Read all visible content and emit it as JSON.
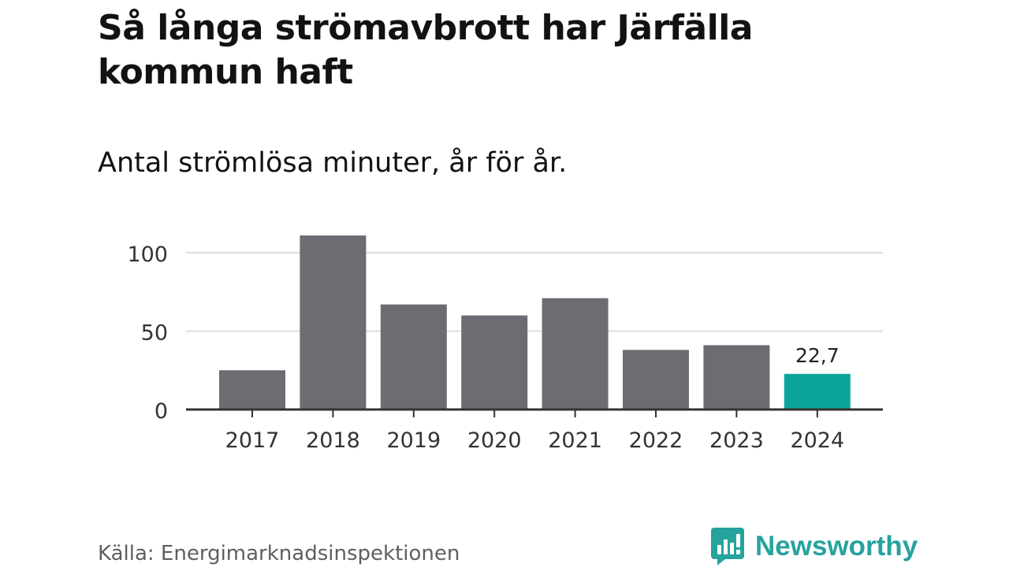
{
  "header": {
    "title": "Så långa strömavbrott har Järfälla kommun haft",
    "subtitle": "Antal strömlösa minuter, år för år."
  },
  "footer": {
    "source": "Källa: Energimarknadsinspektionen",
    "brand": "Newsworthy"
  },
  "colors": {
    "bar": "#6d6c72",
    "highlight": "#0aa59a",
    "brand": "#26a39d"
  },
  "chart_data": {
    "type": "bar",
    "title": "Så långa strömavbrott har Järfälla kommun haft",
    "subtitle": "Antal strömlösa minuter, år för år.",
    "categories": [
      "2017",
      "2018",
      "2019",
      "2020",
      "2021",
      "2022",
      "2023",
      "2024"
    ],
    "values": [
      25,
      111,
      67,
      60,
      71,
      38,
      41,
      22.7
    ],
    "highlight_index": 7,
    "data_labels": [
      {
        "index": 7,
        "text": "22,7"
      }
    ],
    "ylim": [
      0,
      111
    ],
    "yticks": [
      0,
      50,
      100
    ],
    "xlabel": "",
    "ylabel": "",
    "grid": true
  }
}
